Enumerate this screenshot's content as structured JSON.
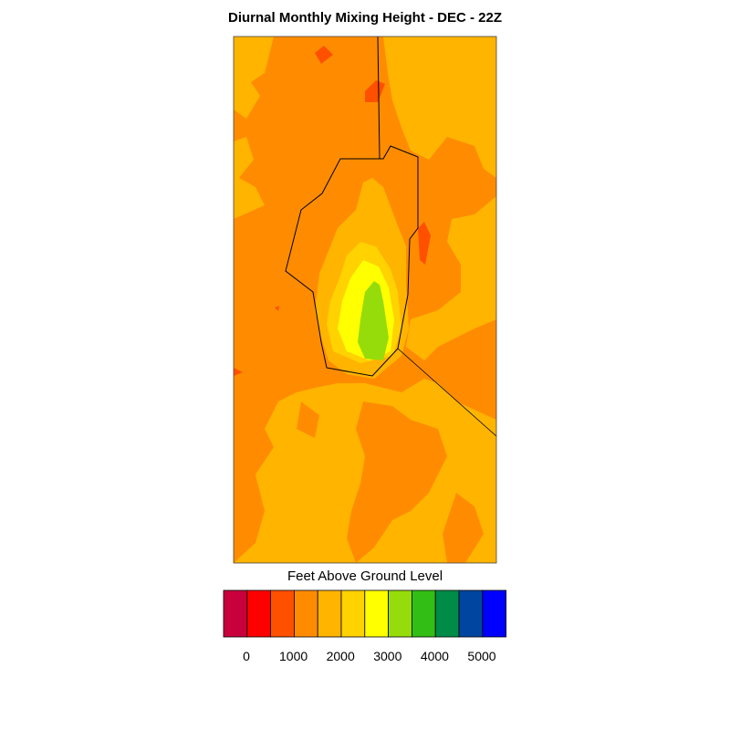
{
  "title": "Diurnal Monthly Mixing Height - DEC - 22Z",
  "colorbar": {
    "label": "Feet Above Ground Level",
    "ticks": [
      "0",
      "1000",
      "2000",
      "3000",
      "4000",
      "5000"
    ],
    "colors": [
      "#c8003c",
      "#ff0000",
      "#ff5000",
      "#ff8c00",
      "#ffb400",
      "#ffd200",
      "#ffff00",
      "#96dc0a",
      "#32be14",
      "#008c46",
      "#0046a0",
      "#0000ff"
    ]
  },
  "map": {
    "background_color": "#ff8c00",
    "fill_colors": {
      "orange": "#ff8c00",
      "amber": "#ffb400",
      "gold": "#ffd200",
      "yellow": "#ffff00",
      "green": "#96dc0a",
      "red_orange": "#ff5000"
    }
  }
}
